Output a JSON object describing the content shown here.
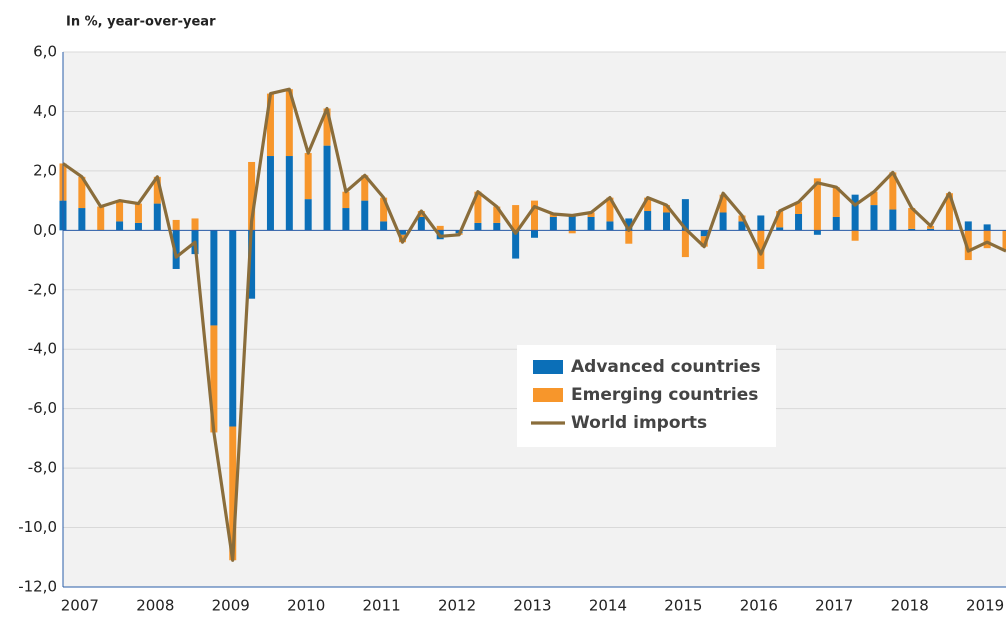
{
  "chart_data": {
    "type": "bar-line",
    "ylabel": "In %, year-over-year",
    "categories": [
      null,
      "2007",
      null,
      null,
      null,
      "2008",
      null,
      null,
      null,
      "2009",
      null,
      null,
      null,
      "2010",
      null,
      null,
      null,
      "2011",
      null,
      null,
      null,
      "2012",
      null,
      null,
      null,
      "2013",
      null,
      null,
      null,
      "2014",
      null,
      null,
      null,
      "2015",
      null,
      null,
      null,
      "2016",
      null,
      null,
      null,
      "2017",
      null,
      null,
      null,
      "2018",
      null,
      null,
      null,
      "2019",
      null
    ],
    "ylim": [
      -12,
      6
    ],
    "yticks": [
      {
        "value": 6,
        "label": "6,0"
      },
      {
        "value": 4,
        "label": "4,0"
      },
      {
        "value": 2,
        "label": "2,0"
      },
      {
        "value": 0,
        "label": "0,0"
      },
      {
        "value": -2,
        "label": "-2,0"
      },
      {
        "value": -4,
        "label": "-4,0"
      },
      {
        "value": -6,
        "label": "-6,0"
      },
      {
        "value": -8,
        "label": "-8,0"
      },
      {
        "value": -10,
        "label": "-10,0"
      },
      {
        "value": -12,
        "label": "-12,0"
      }
    ],
    "grid": true,
    "series": [
      {
        "name": "Advanced countries",
        "kind": "bar",
        "color": "#0b6fb8",
        "values": [
          1.0,
          0.75,
          0.0,
          0.3,
          0.25,
          0.9,
          -1.3,
          -0.8,
          -3.2,
          -6.6,
          -2.3,
          2.5,
          2.5,
          1.05,
          2.85,
          0.75,
          1.0,
          0.3,
          -0.15,
          0.45,
          -0.3,
          -0.1,
          0.25,
          0.25,
          -0.95,
          -0.25,
          0.45,
          0.55,
          0.45,
          0.3,
          0.4,
          0.65,
          0.6,
          1.05,
          -0.2,
          0.6,
          0.3,
          0.5,
          0.1,
          0.55,
          -0.15,
          0.45,
          1.2,
          0.85,
          0.7,
          0.05,
          0.05,
          0.0,
          0.3,
          0.2,
          0.0
        ]
      },
      {
        "name": "Emerging countries",
        "kind": "bar",
        "color": "#f7962b",
        "values": [
          1.25,
          1.05,
          0.8,
          0.7,
          0.65,
          0.9,
          0.35,
          0.4,
          -3.6,
          -4.5,
          2.3,
          2.1,
          2.25,
          1.55,
          1.25,
          0.55,
          0.85,
          0.8,
          -0.25,
          0.2,
          0.15,
          -0.05,
          1.05,
          0.55,
          0.85,
          1.0,
          0.1,
          -0.1,
          0.15,
          0.8,
          -0.45,
          0.45,
          0.25,
          -0.9,
          -0.35,
          0.6,
          0.2,
          -1.3,
          0.55,
          0.4,
          1.75,
          1.0,
          -0.35,
          0.45,
          1.25,
          0.7,
          0.1,
          1.25,
          -1.0,
          -0.6,
          -0.7
        ]
      },
      {
        "name": "World imports",
        "kind": "line",
        "color": "#8a6d3b",
        "values": [
          2.25,
          1.8,
          0.8,
          1.0,
          0.9,
          1.8,
          -0.9,
          -0.4,
          -6.8,
          -11.1,
          0.3,
          4.6,
          4.75,
          2.6,
          4.1,
          1.3,
          1.85,
          1.1,
          -0.4,
          0.65,
          -0.2,
          -0.15,
          1.3,
          0.8,
          -0.1,
          0.8,
          0.55,
          0.5,
          0.6,
          1.1,
          0.0,
          1.1,
          0.85,
          0.05,
          -0.55,
          1.25,
          0.5,
          -0.8,
          0.65,
          0.95,
          1.6,
          1.45,
          0.85,
          1.3,
          1.95,
          0.75,
          0.15,
          1.25,
          -0.7,
          -0.4,
          -0.7
        ]
      }
    ]
  }
}
